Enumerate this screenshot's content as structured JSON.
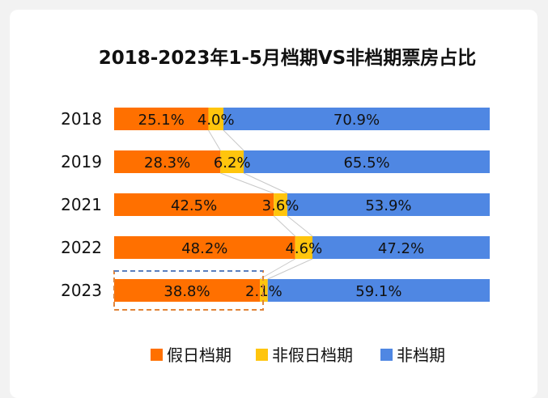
{
  "chart_data": {
    "type": "bar",
    "orientation": "horizontal",
    "stacked": "percent",
    "title": "2018-2023年1-5月档期VS非档期票房占比",
    "categories": [
      "2018",
      "2019",
      "2021",
      "2022",
      "2023"
    ],
    "series": [
      {
        "name": "假日档期",
        "color": "#ff7000",
        "values": [
          25.1,
          28.3,
          42.5,
          48.2,
          38.8
        ],
        "labels": [
          "25.1%",
          "28.3%",
          "42.5%",
          "48.2%",
          "38.8%"
        ]
      },
      {
        "name": "非假日档期",
        "color": "#ffc50d",
        "values": [
          4.0,
          6.2,
          3.6,
          4.6,
          2.1
        ],
        "labels": [
          "4.0%",
          "6.2%",
          "3.6%",
          "4.6%",
          "2.1%"
        ]
      },
      {
        "name": "非档期",
        "color": "#4f87e3",
        "values": [
          70.9,
          65.5,
          53.9,
          47.2,
          59.1
        ],
        "labels": [
          "70.9%",
          "65.5%",
          "53.9%",
          "47.2%",
          "59.1%"
        ]
      }
    ],
    "xlim": [
      0,
      100
    ],
    "grid": false,
    "legend": "bottom",
    "series_lines": true,
    "highlight": {
      "category": "2023",
      "series": "假日档期",
      "style": "dashed box"
    }
  }
}
